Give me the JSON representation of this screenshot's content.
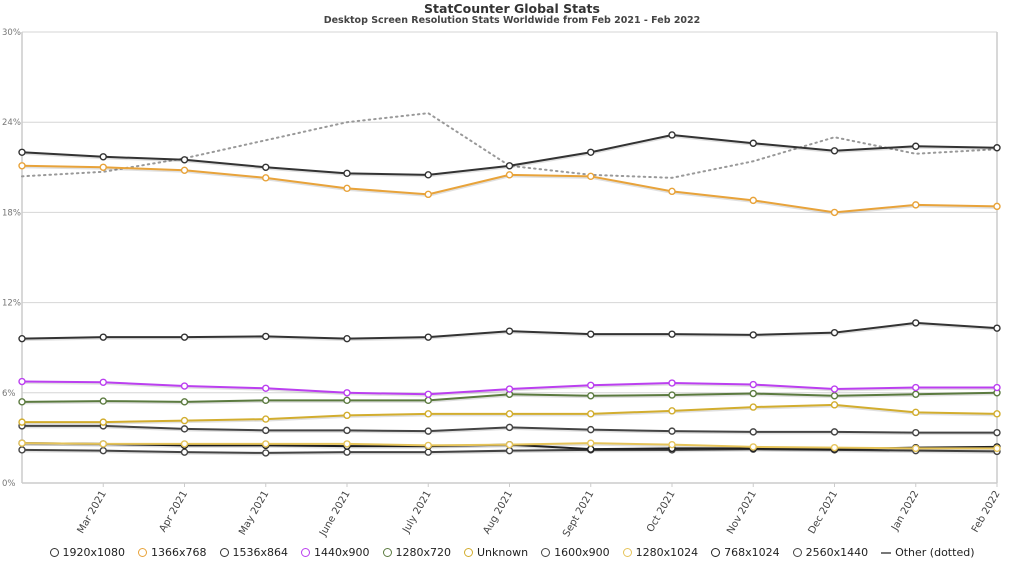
{
  "chart_data": {
    "type": "line",
    "title": "StatCounter Global Stats",
    "subtitle": "Desktop Screen Resolution Stats Worldwide from Feb 2021 - Feb 2022",
    "categories": [
      "Feb 2021",
      "Mar 2021",
      "Apr 2021",
      "May 2021",
      "June 2021",
      "July 2021",
      "Aug 2021",
      "Sept 2021",
      "Oct 2021",
      "Nov 2021",
      "Dec 2021",
      "Jan 2022",
      "Feb 2022"
    ],
    "ylim": [
      0,
      30
    ],
    "yticks": [
      "0%",
      "6%",
      "12%",
      "18%",
      "24%",
      "30%"
    ],
    "grid": true,
    "legend_position": "bottom",
    "series": [
      {
        "name": "1920x1080",
        "color": "#333333",
        "values": [
          22.0,
          21.7,
          21.5,
          21.0,
          20.6,
          20.5,
          21.1,
          22.0,
          23.15,
          22.6,
          22.1,
          22.4,
          22.3
        ]
      },
      {
        "name": "1366x768",
        "color": "#e8a33a",
        "values": [
          21.1,
          21.0,
          20.8,
          20.3,
          19.6,
          19.2,
          20.5,
          20.4,
          19.4,
          18.8,
          18.0,
          18.5,
          18.4
        ]
      },
      {
        "name": "1536x864",
        "color": "#333333",
        "values": [
          9.6,
          9.7,
          9.7,
          9.75,
          9.6,
          9.7,
          10.1,
          9.9,
          9.9,
          9.85,
          10.0,
          10.65,
          10.3
        ]
      },
      {
        "name": "1440x900",
        "color": "#bb3ff0",
        "values": [
          6.75,
          6.7,
          6.45,
          6.3,
          6.0,
          5.9,
          6.25,
          6.5,
          6.65,
          6.55,
          6.25,
          6.35,
          6.35
        ]
      },
      {
        "name": "1280x720",
        "color": "#5b7a3f",
        "values": [
          5.4,
          5.45,
          5.4,
          5.5,
          5.5,
          5.5,
          5.9,
          5.8,
          5.85,
          5.95,
          5.8,
          5.9,
          6.0
        ]
      },
      {
        "name": "Unknown",
        "color": "#d2ad2e",
        "values": [
          4.05,
          4.05,
          4.15,
          4.25,
          4.5,
          4.6,
          4.6,
          4.6,
          4.8,
          5.05,
          5.2,
          4.7,
          4.6
        ]
      },
      {
        "name": "1600x900",
        "color": "#444444",
        "values": [
          3.8,
          3.8,
          3.6,
          3.5,
          3.5,
          3.45,
          3.7,
          3.55,
          3.45,
          3.4,
          3.4,
          3.35,
          3.35
        ]
      },
      {
        "name": "1280x1024",
        "color": "#e6c45a",
        "values": [
          2.65,
          2.6,
          2.6,
          2.6,
          2.6,
          2.5,
          2.55,
          2.65,
          2.55,
          2.4,
          2.35,
          2.3,
          2.3
        ]
      },
      {
        "name": "768x1024",
        "color": "#222222",
        "values": [
          2.65,
          2.6,
          2.5,
          2.5,
          2.45,
          2.45,
          2.55,
          2.25,
          2.3,
          2.3,
          2.25,
          2.35,
          2.4
        ]
      },
      {
        "name": "2560x1440",
        "color": "#444444",
        "values": [
          2.2,
          2.15,
          2.05,
          2.0,
          2.05,
          2.05,
          2.15,
          2.2,
          2.2,
          2.25,
          2.2,
          2.15,
          2.1
        ]
      },
      {
        "name": "Other (dotted)",
        "color": "#999999",
        "dotted": true,
        "values": [
          20.4,
          20.7,
          21.6,
          22.8,
          24.0,
          24.6,
          21.1,
          20.5,
          20.3,
          21.4,
          23.0,
          21.9,
          22.2
        ]
      }
    ]
  }
}
